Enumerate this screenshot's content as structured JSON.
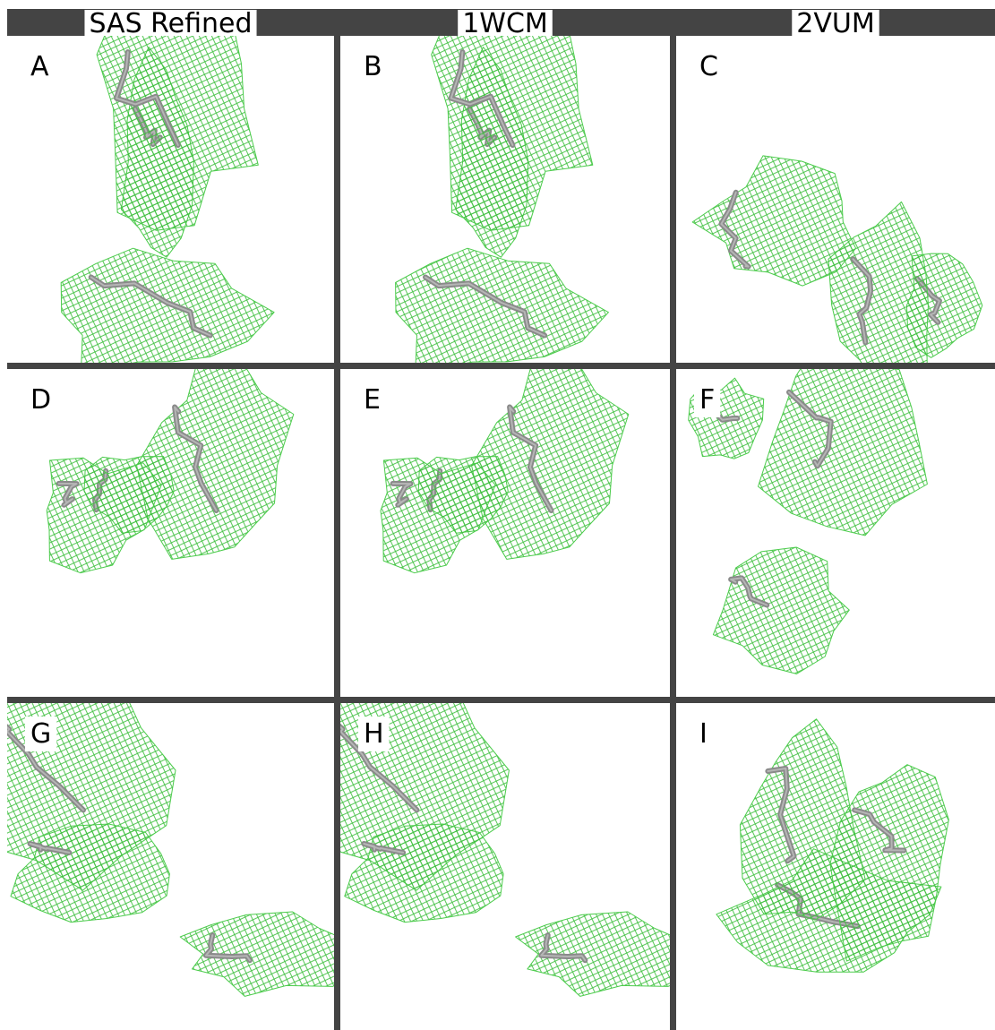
{
  "columns": [
    "SAS Refined",
    "1WCM",
    "2VUM"
  ],
  "panels": [
    "A",
    "B",
    "C",
    "D",
    "E",
    "F",
    "G",
    "H",
    "I"
  ]
}
